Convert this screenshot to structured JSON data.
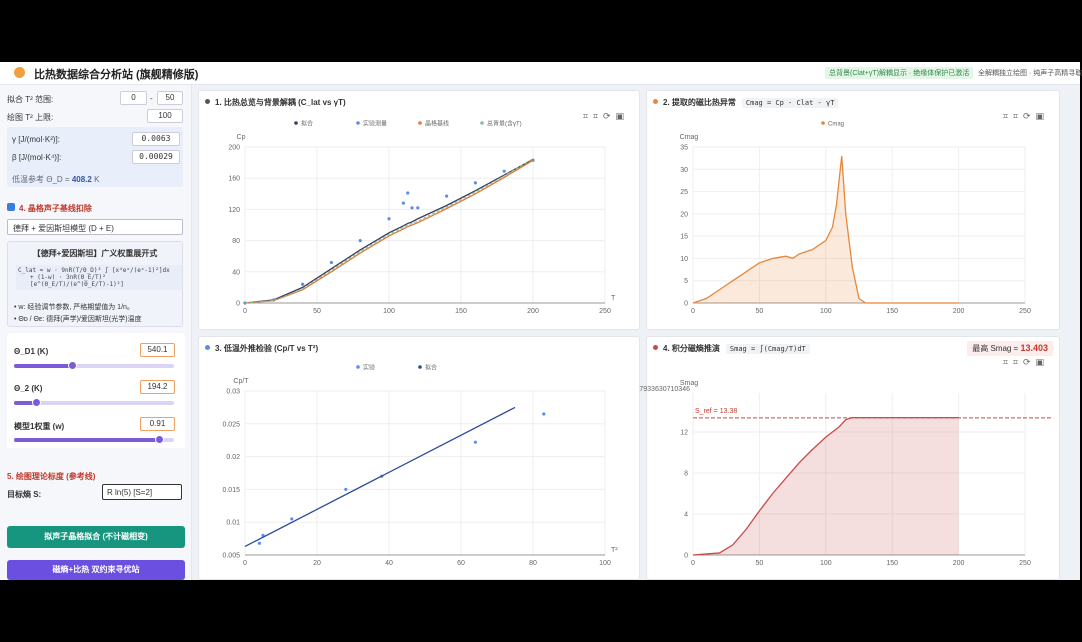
{
  "header": {
    "title": "比热数据综合分析站 (旗舰精修版)",
    "badge": "总背景(Clat+γT)解耦显示 · 绝缘体保护已激活",
    "note": "全解耦独立绘图 · 纯声子高精寻取"
  },
  "sidebar": {
    "fit_range_label": "拟合 T² 范围:",
    "fit_min": "0",
    "range_sep": "-",
    "fit_max": "50",
    "plot_max_label": "绘图 T² 上限:",
    "plot_max": "100",
    "gamma_label": "γ [J/(mol·K²)]:",
    "gamma": "0.0063",
    "beta_label": "β [J/(mol·K⁴)]:",
    "beta": "0.00029",
    "theta_label": "低温参考 Θ_D =",
    "theta_value": "408.2",
    "theta_unit": "K",
    "section4": "4. 晶格声子基线扣除",
    "model_select": "德拜 + 爱因斯坦模型 (D + E)",
    "formula_title": "【德拜+爱因斯坦】广义权重展开式",
    "formula_lines": [
      "C_lat = w · 9nR(T/Θ_D)³ ∫ [x⁴eˣ/(eˣ-1)²]dx",
      "+ (1-w) · 3nR(Θ_E/T)² [e^(Θ_E/T)/(e^(Θ_E/T)-1)²]"
    ],
    "bullets": [
      "• w: 经验调节参数, 严格期望值为 1/n。",
      "• Θᴅ / Θᴇ: 德拜(声学)/爱因斯坦(光学)温度"
    ],
    "sliders": [
      {
        "label": "Θ_D1 (K)",
        "value": "540.1"
      },
      {
        "label": "Θ_2 (K)",
        "value": "194.2"
      },
      {
        "label": "模型1权重 (w)",
        "value": "0.91"
      }
    ],
    "section5": "5. 绘图理论标度 (参考线)",
    "target_label": "目标熵 S:",
    "target_select": "R ln(5) [S=2]",
    "button1": "拟声子晶格拟合 (不计磁相变)",
    "button2": "磁熵+比热 双约束寻优站"
  },
  "chart_data": [
    {
      "type": "line",
      "title": "1. 比热总览与背景解耦 (C_lat vs γT)",
      "x_label": "T",
      "y_label": "Cp",
      "xlim": [
        0,
        250
      ],
      "xticks": [
        0,
        50,
        100,
        150,
        200,
        250
      ],
      "ylim": [
        0,
        200
      ],
      "yticks": [
        0,
        40,
        80,
        120,
        160,
        200
      ],
      "grid": true,
      "legend": "top",
      "series": [
        {
          "name": "拟合",
          "color": "#3b3f5c",
          "style": "line",
          "x": [
            0,
            20,
            40,
            60,
            80,
            100,
            110,
            113,
            116,
            120,
            140,
            160,
            180,
            200
          ],
          "values": [
            0,
            4,
            20,
            44,
            68,
            90,
            99,
            102,
            104,
            108,
            125,
            144,
            164,
            184
          ]
        },
        {
          "name": "实验测量",
          "color": "#5b8def",
          "style": "markers",
          "x": [
            0,
            20,
            40,
            60,
            80,
            100,
            110,
            113,
            116,
            120,
            140,
            160,
            180,
            200
          ],
          "values": [
            0,
            4,
            24,
            52,
            80,
            108,
            128,
            141,
            122,
            122,
            137,
            154,
            169,
            183
          ]
        },
        {
          "name": "晶格基线",
          "color": "#e07b39",
          "style": "line",
          "x": [
            0,
            20,
            40,
            60,
            80,
            100,
            110,
            113,
            116,
            120,
            140,
            160,
            180,
            200
          ],
          "values": [
            0,
            3,
            17,
            40,
            64,
            86,
            95,
            98,
            100,
            103,
            121,
            140,
            161,
            183
          ]
        },
        {
          "name": "总背景(含γT)",
          "color": "#7fbf9a",
          "style": "dashed",
          "x": [
            0,
            20,
            40,
            60,
            80,
            100,
            110,
            113,
            116,
            120,
            140,
            160,
            180,
            200
          ],
          "values": [
            0,
            3,
            18,
            42,
            66,
            88,
            97,
            100,
            102,
            105,
            123,
            142,
            163,
            185
          ]
        }
      ]
    },
    {
      "type": "area",
      "title": "2. 提取的磁比热异常",
      "chip": "Cmag = Cp - Clat - γT",
      "y_label": "Cmag",
      "xlim": [
        0,
        250
      ],
      "xticks": [
        0,
        50,
        100,
        150,
        200,
        250
      ],
      "ylim": [
        0,
        35
      ],
      "yticks": [
        0,
        5,
        10,
        15,
        20,
        25,
        30,
        35
      ],
      "grid": true,
      "legend": "top",
      "series": [
        {
          "name": "Cmag",
          "color": "#e8873a",
          "style": "area",
          "x": [
            0,
            10,
            20,
            30,
            40,
            50,
            60,
            70,
            75,
            80,
            90,
            100,
            105,
            108,
            112,
            115,
            120,
            125,
            130,
            200
          ],
          "values": [
            0,
            1,
            3,
            5,
            7,
            9,
            10,
            10.5,
            10,
            11,
            12,
            14,
            17,
            22,
            33,
            20,
            8,
            1,
            0,
            0
          ]
        }
      ]
    },
    {
      "type": "scatter",
      "title": "3. 低温外推检验 (Cp/T vs T²)",
      "x_label": "T²",
      "y_label": "Cp/T",
      "xlim": [
        0,
        100
      ],
      "xticks": [
        0,
        20,
        40,
        60,
        80,
        100
      ],
      "ylim": [
        0.005,
        0.03
      ],
      "yticks": [
        0.005,
        0.01,
        0.015,
        0.02,
        0.025,
        0.03
      ],
      "grid": true,
      "legend": "top",
      "series": [
        {
          "name": "实验",
          "color": "#5b8def",
          "style": "markers",
          "x": [
            4,
            5,
            13,
            28,
            38,
            64,
            83
          ],
          "values": [
            0.0068,
            0.008,
            0.0105,
            0.015,
            0.017,
            0.0222,
            0.0265
          ]
        },
        {
          "name": "拟合",
          "color": "#2c4a9a",
          "style": "line",
          "x": [
            0,
            75
          ],
          "values": [
            0.0063,
            0.0275
          ]
        }
      ]
    },
    {
      "type": "area",
      "title": "4. 积分磁熵推演",
      "chip": "Smag = ∫(Cmag/T)dT",
      "badge_label": "最高 Smag =",
      "badge_value": 13.403,
      "y_label": "Smag",
      "ymax_label": "7933630710346",
      "xlim": [
        0,
        250
      ],
      "xticks": [
        0,
        50,
        100,
        150,
        200,
        250
      ],
      "ylim": [
        0,
        15.8
      ],
      "yticks": [
        0,
        4,
        8,
        12
      ],
      "grid": true,
      "legend": "none",
      "reference": {
        "value": 13.38,
        "label": "S_ref = 13.38"
      },
      "series": [
        {
          "name": "Smag",
          "color": "#c94a4a",
          "style": "area",
          "x": [
            0,
            20,
            30,
            40,
            50,
            60,
            70,
            80,
            90,
            100,
            110,
            115,
            120,
            200
          ],
          "values": [
            0,
            0.2,
            1,
            2.5,
            4.3,
            6,
            7.5,
            9,
            10.3,
            11.5,
            12.5,
            13.2,
            13.4,
            13.4
          ]
        }
      ]
    }
  ]
}
